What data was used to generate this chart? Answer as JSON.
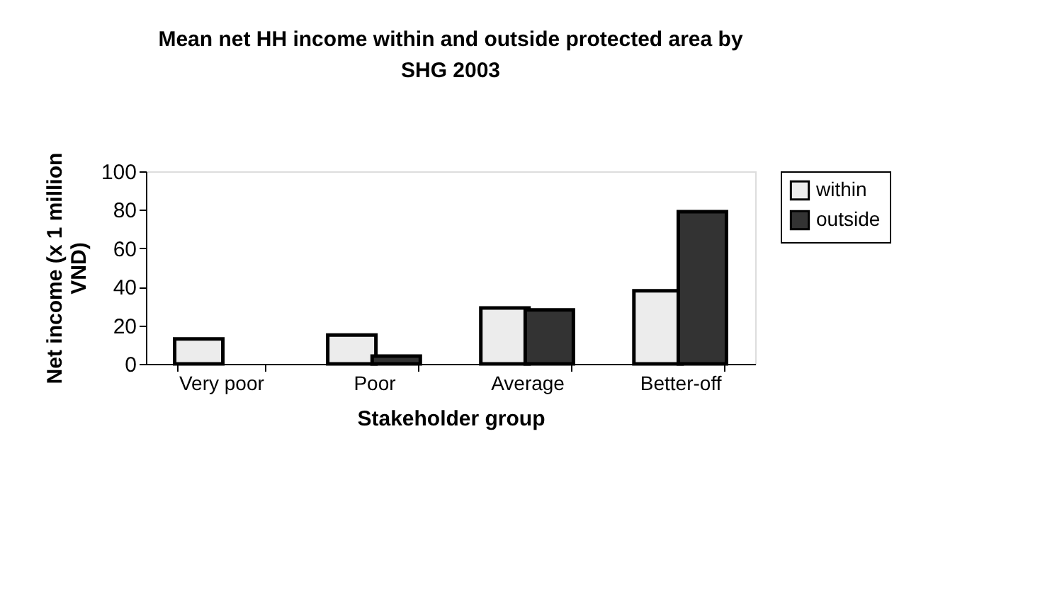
{
  "chart_data": {
    "type": "bar",
    "title": "Mean net HH income within and outside protected area by SHG 2003",
    "xlabel": "Stakeholder group",
    "ylabel": "Net income (x 1 million VND)",
    "categories": [
      "Very poor",
      "Poor",
      "Average",
      "Better-off"
    ],
    "series": [
      {
        "name": "within",
        "color": "#ececec",
        "values": [
          13,
          15,
          29,
          38
        ]
      },
      {
        "name": "outside",
        "color": "#333333",
        "values": [
          null,
          4,
          28,
          79
        ]
      }
    ],
    "ylim": [
      0,
      100
    ],
    "yticks": [
      0,
      20,
      40,
      60,
      80,
      100
    ],
    "grid": false,
    "legend": "right"
  }
}
